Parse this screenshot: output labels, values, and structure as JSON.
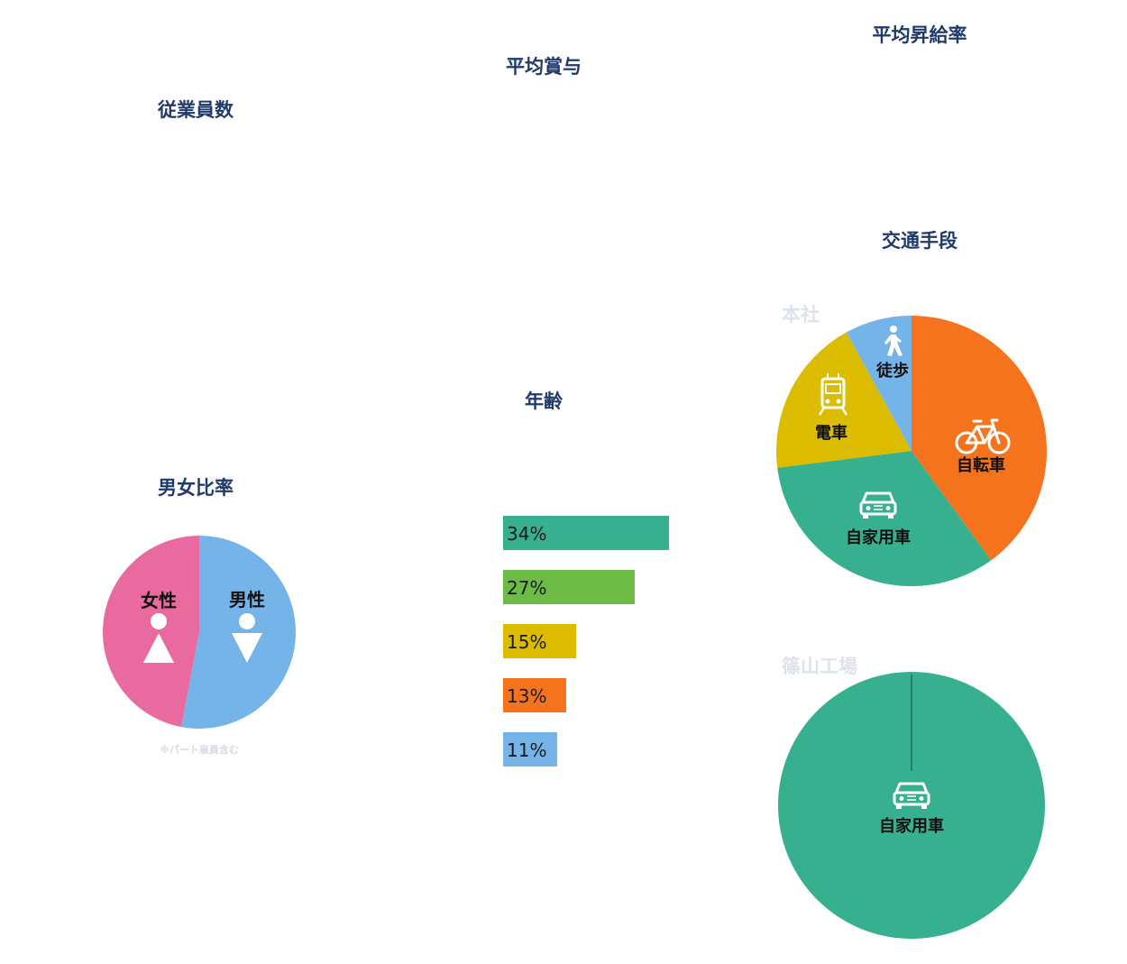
{
  "headings": {
    "employees": "従業員数",
    "bonus": "平均賞与",
    "raise": "平均昇給率",
    "commute": "交通手段",
    "age": "年齢",
    "gender": "男女比率"
  },
  "note": "※パート雇員含む",
  "colors": {
    "heading": "#1f3a6b",
    "male": "#74b4e9",
    "female": "#e96a9f",
    "teal": "#36b08f",
    "green": "#6cbb47",
    "yellow": "#dcbc00",
    "orange": "#f5731d",
    "blue": "#74b4e9"
  },
  "chart_data": [
    {
      "type": "pie",
      "id": "gender",
      "slices": [
        {
          "label": "男性",
          "value": 53,
          "color": "#74b4e9",
          "icon": "male-icon"
        },
        {
          "label": "女性",
          "value": 47,
          "color": "#e96a9f",
          "icon": "female-icon"
        }
      ]
    },
    {
      "type": "bar",
      "id": "age",
      "orientation": "horizontal",
      "values": [
        34,
        27,
        15,
        13,
        11
      ],
      "labels": [
        "34%",
        "27%",
        "15%",
        "13%",
        "11%"
      ],
      "colors": [
        "#36b08f",
        "#6cbb47",
        "#dcbc00",
        "#f5731d",
        "#74b4e9"
      ]
    },
    {
      "type": "pie",
      "id": "commute-honsha",
      "site": "本社",
      "slices": [
        {
          "label": "自転車",
          "value": 40,
          "color": "#f5731d",
          "icon": "bicycle-icon"
        },
        {
          "label": "自家用車",
          "value": 33,
          "color": "#36b08f",
          "icon": "car-icon"
        },
        {
          "label": "電車",
          "value": 19,
          "color": "#dcbc00",
          "icon": "train-icon"
        },
        {
          "label": "徒歩",
          "value": 8,
          "color": "#74b4e9",
          "icon": "walking-icon"
        }
      ]
    },
    {
      "type": "pie",
      "id": "commute-sasayama",
      "site": "篠山工場",
      "slices": [
        {
          "label": "自家用車",
          "value": 100,
          "color": "#36b08f",
          "icon": "car-icon"
        }
      ]
    }
  ]
}
